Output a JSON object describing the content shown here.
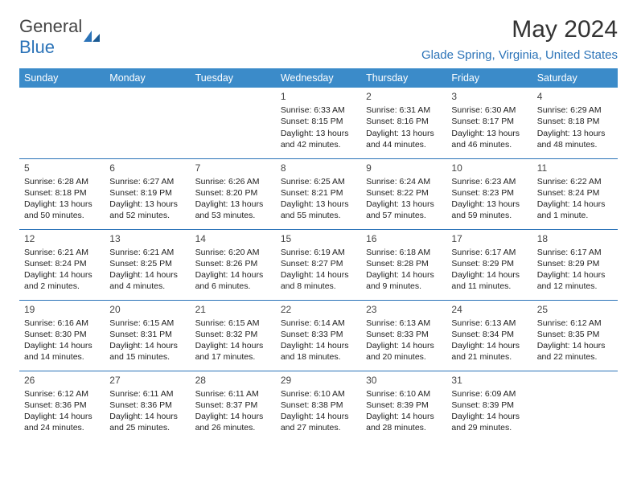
{
  "logo": {
    "text_part1": "General",
    "text_part2": "Blue"
  },
  "title": "May 2024",
  "location": "Glade Spring, Virginia, United States",
  "colors": {
    "header_bg": "#3b8bc9",
    "header_text": "#ffffff",
    "accent": "#2b73b8",
    "body_text": "#222222"
  },
  "weekdays": [
    "Sunday",
    "Monday",
    "Tuesday",
    "Wednesday",
    "Thursday",
    "Friday",
    "Saturday"
  ],
  "weeks": [
    [
      null,
      null,
      null,
      {
        "n": "1",
        "sr": "Sunrise: 6:33 AM",
        "ss": "Sunset: 8:15 PM",
        "dl": "Daylight: 13 hours and 42 minutes."
      },
      {
        "n": "2",
        "sr": "Sunrise: 6:31 AM",
        "ss": "Sunset: 8:16 PM",
        "dl": "Daylight: 13 hours and 44 minutes."
      },
      {
        "n": "3",
        "sr": "Sunrise: 6:30 AM",
        "ss": "Sunset: 8:17 PM",
        "dl": "Daylight: 13 hours and 46 minutes."
      },
      {
        "n": "4",
        "sr": "Sunrise: 6:29 AM",
        "ss": "Sunset: 8:18 PM",
        "dl": "Daylight: 13 hours and 48 minutes."
      }
    ],
    [
      {
        "n": "5",
        "sr": "Sunrise: 6:28 AM",
        "ss": "Sunset: 8:18 PM",
        "dl": "Daylight: 13 hours and 50 minutes."
      },
      {
        "n": "6",
        "sr": "Sunrise: 6:27 AM",
        "ss": "Sunset: 8:19 PM",
        "dl": "Daylight: 13 hours and 52 minutes."
      },
      {
        "n": "7",
        "sr": "Sunrise: 6:26 AM",
        "ss": "Sunset: 8:20 PM",
        "dl": "Daylight: 13 hours and 53 minutes."
      },
      {
        "n": "8",
        "sr": "Sunrise: 6:25 AM",
        "ss": "Sunset: 8:21 PM",
        "dl": "Daylight: 13 hours and 55 minutes."
      },
      {
        "n": "9",
        "sr": "Sunrise: 6:24 AM",
        "ss": "Sunset: 8:22 PM",
        "dl": "Daylight: 13 hours and 57 minutes."
      },
      {
        "n": "10",
        "sr": "Sunrise: 6:23 AM",
        "ss": "Sunset: 8:23 PM",
        "dl": "Daylight: 13 hours and 59 minutes."
      },
      {
        "n": "11",
        "sr": "Sunrise: 6:22 AM",
        "ss": "Sunset: 8:24 PM",
        "dl": "Daylight: 14 hours and 1 minute."
      }
    ],
    [
      {
        "n": "12",
        "sr": "Sunrise: 6:21 AM",
        "ss": "Sunset: 8:24 PM",
        "dl": "Daylight: 14 hours and 2 minutes."
      },
      {
        "n": "13",
        "sr": "Sunrise: 6:21 AM",
        "ss": "Sunset: 8:25 PM",
        "dl": "Daylight: 14 hours and 4 minutes."
      },
      {
        "n": "14",
        "sr": "Sunrise: 6:20 AM",
        "ss": "Sunset: 8:26 PM",
        "dl": "Daylight: 14 hours and 6 minutes."
      },
      {
        "n": "15",
        "sr": "Sunrise: 6:19 AM",
        "ss": "Sunset: 8:27 PM",
        "dl": "Daylight: 14 hours and 8 minutes."
      },
      {
        "n": "16",
        "sr": "Sunrise: 6:18 AM",
        "ss": "Sunset: 8:28 PM",
        "dl": "Daylight: 14 hours and 9 minutes."
      },
      {
        "n": "17",
        "sr": "Sunrise: 6:17 AM",
        "ss": "Sunset: 8:29 PM",
        "dl": "Daylight: 14 hours and 11 minutes."
      },
      {
        "n": "18",
        "sr": "Sunrise: 6:17 AM",
        "ss": "Sunset: 8:29 PM",
        "dl": "Daylight: 14 hours and 12 minutes."
      }
    ],
    [
      {
        "n": "19",
        "sr": "Sunrise: 6:16 AM",
        "ss": "Sunset: 8:30 PM",
        "dl": "Daylight: 14 hours and 14 minutes."
      },
      {
        "n": "20",
        "sr": "Sunrise: 6:15 AM",
        "ss": "Sunset: 8:31 PM",
        "dl": "Daylight: 14 hours and 15 minutes."
      },
      {
        "n": "21",
        "sr": "Sunrise: 6:15 AM",
        "ss": "Sunset: 8:32 PM",
        "dl": "Daylight: 14 hours and 17 minutes."
      },
      {
        "n": "22",
        "sr": "Sunrise: 6:14 AM",
        "ss": "Sunset: 8:33 PM",
        "dl": "Daylight: 14 hours and 18 minutes."
      },
      {
        "n": "23",
        "sr": "Sunrise: 6:13 AM",
        "ss": "Sunset: 8:33 PM",
        "dl": "Daylight: 14 hours and 20 minutes."
      },
      {
        "n": "24",
        "sr": "Sunrise: 6:13 AM",
        "ss": "Sunset: 8:34 PM",
        "dl": "Daylight: 14 hours and 21 minutes."
      },
      {
        "n": "25",
        "sr": "Sunrise: 6:12 AM",
        "ss": "Sunset: 8:35 PM",
        "dl": "Daylight: 14 hours and 22 minutes."
      }
    ],
    [
      {
        "n": "26",
        "sr": "Sunrise: 6:12 AM",
        "ss": "Sunset: 8:36 PM",
        "dl": "Daylight: 14 hours and 24 minutes."
      },
      {
        "n": "27",
        "sr": "Sunrise: 6:11 AM",
        "ss": "Sunset: 8:36 PM",
        "dl": "Daylight: 14 hours and 25 minutes."
      },
      {
        "n": "28",
        "sr": "Sunrise: 6:11 AM",
        "ss": "Sunset: 8:37 PM",
        "dl": "Daylight: 14 hours and 26 minutes."
      },
      {
        "n": "29",
        "sr": "Sunrise: 6:10 AM",
        "ss": "Sunset: 8:38 PM",
        "dl": "Daylight: 14 hours and 27 minutes."
      },
      {
        "n": "30",
        "sr": "Sunrise: 6:10 AM",
        "ss": "Sunset: 8:39 PM",
        "dl": "Daylight: 14 hours and 28 minutes."
      },
      {
        "n": "31",
        "sr": "Sunrise: 6:09 AM",
        "ss": "Sunset: 8:39 PM",
        "dl": "Daylight: 14 hours and 29 minutes."
      },
      null
    ]
  ]
}
